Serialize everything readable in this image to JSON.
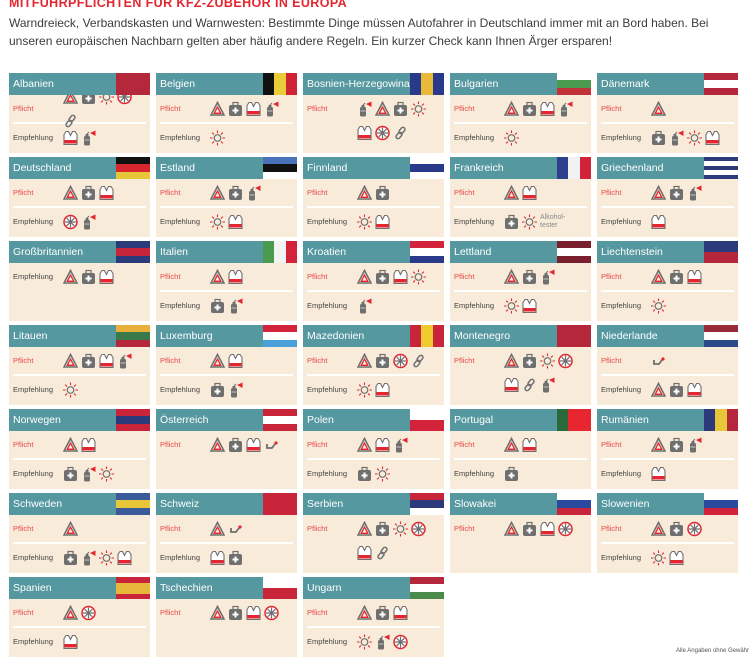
{
  "title": "MITFÜHRPFLICHTEN FÜR KFZ-ZUBEHÖR IN EUROPA",
  "intro": "Warndreieck, Verbandskasten und Warnwesten: Bestimmte Dinge müssen Autofahrer in Deutschland immer mit an Bord haben. Bei unseren europäischen Nachbarn gelten aber häufig andere Regeln. Ein kurzer Check kann Ihnen Ärger ersparen!",
  "labels": {
    "pflicht": "Pflicht",
    "empfehlung": "Empfehlung"
  },
  "footer": "Alle Angaben ohne Gewähr",
  "icon_legend": {
    "T": "warning-triangle-icon",
    "K": "first-aid-kit-icon",
    "B": "spare-bulb-icon",
    "W": "snow-chain-wheel-icon",
    "L": "tow-rope-icon",
    "V": "safety-vest-icon",
    "F": "fire-extinguisher-icon",
    "H": "tow-hook-icon"
  },
  "colors": {
    "accent": "#e3262f",
    "header": "#5598a0",
    "card": "#f8ebda"
  },
  "countries": [
    {
      "name": "Albanien",
      "flag": {
        "dir": "v",
        "colors": [
          "#b5273a"
        ]
      },
      "pflicht": [
        "T",
        "K",
        "B",
        "W",
        "L"
      ],
      "empfehlung": [
        "V",
        "F"
      ]
    },
    {
      "name": "Belgien",
      "flag": {
        "dir": "v",
        "colors": [
          "#111111",
          "#e8cc3a",
          "#cf2233"
        ]
      },
      "pflicht": [
        "T",
        "K",
        "V",
        "F"
      ],
      "empfehlung": [
        "B"
      ]
    },
    {
      "name": "Bosnien-Herzegowina",
      "flag": {
        "dir": "v",
        "colors": [
          "#2a3a8a",
          "#e8b93a",
          "#2a3a8a"
        ]
      },
      "pflicht": [
        "F",
        "T",
        "K",
        "B",
        "V",
        "W",
        "L"
      ],
      "empfehlung": []
    },
    {
      "name": "Bulgarien",
      "flag": {
        "dir": "h",
        "colors": [
          "#ffffff",
          "#4a9a50",
          "#c2323a"
        ]
      },
      "pflicht": [
        "T",
        "K",
        "V",
        "F"
      ],
      "empfehlung": [
        "B"
      ]
    },
    {
      "name": "Dänemark",
      "flag": {
        "dir": "h",
        "colors": [
          "#b5273a",
          "#ffffff",
          "#b5273a"
        ]
      },
      "pflicht": [
        "T"
      ],
      "empfehlung": [
        "K",
        "F",
        "B",
        "V"
      ]
    },
    {
      "name": "Deutschland",
      "flag": {
        "dir": "h",
        "colors": [
          "#111111",
          "#d8262f",
          "#e8c63a"
        ]
      },
      "pflicht": [
        "T",
        "K",
        "V"
      ],
      "empfehlung": [
        "W",
        "F"
      ]
    },
    {
      "name": "Estland",
      "flag": {
        "dir": "h",
        "colors": [
          "#4a72b8",
          "#111111",
          "#ffffff"
        ]
      },
      "pflicht": [
        "T",
        "K",
        "F"
      ],
      "empfehlung": [
        "B",
        "V"
      ]
    },
    {
      "name": "Finnland",
      "flag": {
        "dir": "h",
        "colors": [
          "#ffffff",
          "#2a3a8a",
          "#ffffff"
        ]
      },
      "pflicht": [
        "T",
        "K"
      ],
      "empfehlung": [
        "B",
        "V"
      ]
    },
    {
      "name": "Frankreich",
      "flag": {
        "dir": "v",
        "colors": [
          "#2f3f8f",
          "#f2f2f2",
          "#d2233a"
        ]
      },
      "pflicht": [
        "T",
        "V"
      ],
      "empfehlung": [
        "K",
        "B"
      ],
      "extra": "Alkohol-tester"
    },
    {
      "name": "Griechenland",
      "flag": {
        "dir": "h",
        "colors": [
          "#2a3a7a",
          "#ffffff",
          "#2a3a7a",
          "#ffffff",
          "#2a3a7a"
        ]
      },
      "pflicht": [
        "T",
        "K",
        "F"
      ],
      "empfehlung": [
        "V"
      ]
    },
    {
      "name": "Großbritannien",
      "flag": {
        "dir": "h",
        "colors": [
          "#2a3a7a",
          "#c8243a",
          "#2a3a7a"
        ]
      },
      "pflicht": [],
      "empfehlung": [
        "T",
        "K",
        "V"
      ]
    },
    {
      "name": "Italien",
      "flag": {
        "dir": "v",
        "colors": [
          "#4a9a50",
          "#f2f2f2",
          "#d2233a"
        ]
      },
      "pflicht": [
        "T",
        "V"
      ],
      "empfehlung": [
        "K",
        "F"
      ]
    },
    {
      "name": "Kroatien",
      "flag": {
        "dir": "h",
        "colors": [
          "#d2233a",
          "#ffffff",
          "#2a3a8a"
        ]
      },
      "pflicht": [
        "T",
        "K",
        "V",
        "B"
      ],
      "empfehlung": [
        "F"
      ]
    },
    {
      "name": "Lettland",
      "flag": {
        "dir": "h",
        "colors": [
          "#7a1f2e",
          "#ffffff",
          "#7a1f2e"
        ]
      },
      "pflicht": [
        "T",
        "K",
        "F"
      ],
      "empfehlung": [
        "B",
        "V"
      ]
    },
    {
      "name": "Liechtenstein",
      "flag": {
        "dir": "h",
        "colors": [
          "#2a3a7a",
          "#b5273a"
        ]
      },
      "pflicht": [
        "T",
        "K",
        "V"
      ],
      "empfehlung": [
        "B"
      ]
    },
    {
      "name": "Litauen",
      "flag": {
        "dir": "h",
        "colors": [
          "#e8b03a",
          "#3a7a4a",
          "#b5273a"
        ]
      },
      "pflicht": [
        "T",
        "K",
        "V",
        "F"
      ],
      "empfehlung": [
        "B"
      ]
    },
    {
      "name": "Luxemburg",
      "flag": {
        "dir": "h",
        "colors": [
          "#d2233a",
          "#ffffff",
          "#4aa0d8"
        ]
      },
      "pflicht": [
        "T",
        "V"
      ],
      "empfehlung": [
        "K",
        "F"
      ]
    },
    {
      "name": "Mazedonien",
      "flag": {
        "dir": "v",
        "colors": [
          "#c8243a",
          "#f0c830",
          "#c8243a"
        ]
      },
      "pflicht": [
        "T",
        "K",
        "W",
        "L"
      ],
      "empfehlung": [
        "B",
        "V"
      ]
    },
    {
      "name": "Montenegro",
      "flag": {
        "dir": "v",
        "colors": [
          "#b5273a"
        ]
      },
      "pflicht": [
        "T",
        "K",
        "B",
        "W",
        "V",
        "L",
        "F"
      ],
      "empfehlung": []
    },
    {
      "name": "Niederlande",
      "flag": {
        "dir": "h",
        "colors": [
          "#9a2a3a",
          "#ffffff",
          "#2a4a8a"
        ]
      },
      "pflicht": [
        "H"
      ],
      "empfehlung": [
        "T",
        "K",
        "V"
      ]
    },
    {
      "name": "Norwegen",
      "flag": {
        "dir": "h",
        "colors": [
          "#c8243a",
          "#2a3a7a",
          "#c8243a"
        ]
      },
      "pflicht": [
        "T",
        "V"
      ],
      "empfehlung": [
        "K",
        "F",
        "B"
      ]
    },
    {
      "name": "Österreich",
      "flag": {
        "dir": "h",
        "colors": [
          "#c8243a",
          "#ffffff",
          "#c8243a"
        ]
      },
      "pflicht": [
        "T",
        "K",
        "V",
        "H"
      ],
      "empfehlung": []
    },
    {
      "name": "Polen",
      "flag": {
        "dir": "h",
        "colors": [
          "#ffffff",
          "#d2233a"
        ]
      },
      "pflicht": [
        "T",
        "V",
        "F"
      ],
      "empfehlung": [
        "K",
        "B"
      ]
    },
    {
      "name": "Portugal",
      "flag": {
        "dir": "v",
        "colors": [
          "#2a6a3a",
          "#e8262f",
          "#e8262f"
        ]
      },
      "pflicht": [
        "T",
        "V"
      ],
      "empfehlung": [
        "K"
      ]
    },
    {
      "name": "Rumänien",
      "flag": {
        "dir": "v",
        "colors": [
          "#2a3a7a",
          "#e8c63a",
          "#b5273a"
        ]
      },
      "pflicht": [
        "T",
        "K",
        "F"
      ],
      "empfehlung": [
        "V"
      ]
    },
    {
      "name": "Schweden",
      "flag": {
        "dir": "h",
        "colors": [
          "#3a5a9a",
          "#e8c63a",
          "#3a5a9a"
        ]
      },
      "pflicht": [
        "T"
      ],
      "empfehlung": [
        "K",
        "F",
        "B",
        "V"
      ]
    },
    {
      "name": "Schweiz",
      "flag": {
        "dir": "v",
        "colors": [
          "#c8243a"
        ]
      },
      "pflicht": [
        "T",
        "H"
      ],
      "empfehlung": [
        "V",
        "K"
      ]
    },
    {
      "name": "Serbien",
      "flag": {
        "dir": "h",
        "colors": [
          "#c8243a",
          "#2a3a7a",
          "#ffffff"
        ]
      },
      "pflicht": [
        "T",
        "K",
        "B",
        "W",
        "V",
        "L"
      ],
      "empfehlung": []
    },
    {
      "name": "Slowakei",
      "flag": {
        "dir": "h",
        "colors": [
          "#ffffff",
          "#2a4aa0",
          "#c8243a"
        ]
      },
      "pflicht": [
        "T",
        "K",
        "V",
        "W"
      ],
      "empfehlung": []
    },
    {
      "name": "Slowenien",
      "flag": {
        "dir": "h",
        "colors": [
          "#ffffff",
          "#2a4aa0",
          "#d2233a"
        ]
      },
      "pflicht": [
        "T",
        "K",
        "W"
      ],
      "empfehlung": [
        "B",
        "V"
      ]
    },
    {
      "name": "Spanien",
      "flag": {
        "dir": "h",
        "colors": [
          "#c8243a",
          "#e8b83a",
          "#e8b83a",
          "#c8243a"
        ]
      },
      "pflicht": [
        "T",
        "W"
      ],
      "empfehlung": [
        "V"
      ]
    },
    {
      "name": "Tschechien",
      "flag": {
        "dir": "h",
        "colors": [
          "#ffffff",
          "#c8243a"
        ]
      },
      "pflicht": [
        "T",
        "K",
        "V",
        "W"
      ],
      "empfehlung": []
    },
    {
      "name": "Ungarn",
      "flag": {
        "dir": "h",
        "colors": [
          "#b5273a",
          "#ffffff",
          "#4a8a4a"
        ]
      },
      "pflicht": [
        "T",
        "K",
        "V"
      ],
      "empfehlung": [
        "B",
        "F",
        "W"
      ]
    }
  ]
}
